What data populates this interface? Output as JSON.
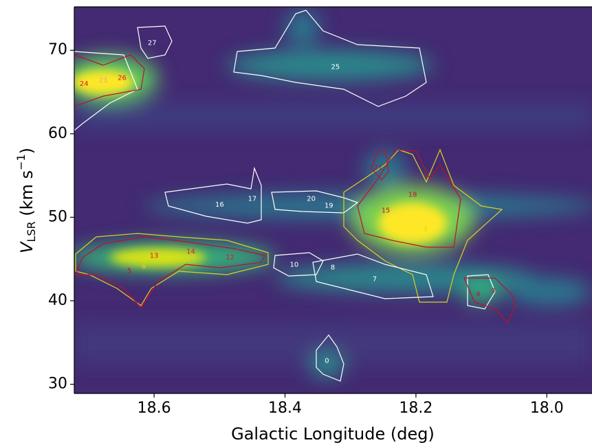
{
  "chart_data": {
    "type": "image",
    "xlabel": "Galactic Longitude (deg)",
    "ylabel": {
      "main": "V",
      "sub": "LSR",
      "unit": " (km s",
      "sup": "−1",
      "close": ")"
    },
    "xlim": [
      18.722,
      17.931
    ],
    "ylim": [
      28.9,
      75.2
    ],
    "xticks": [
      18.6,
      18.4,
      18.2,
      {
        "value": 18,
        "label": "18.0"
      }
    ],
    "yticks": [
      30,
      40,
      50,
      60,
      70
    ],
    "annotations": [
      {
        "text": "27",
        "x": 18.603,
        "y": 70.9,
        "color": "#ffffff"
      },
      {
        "text": "25",
        "x": 18.323,
        "y": 68.0,
        "color": "#ffffff"
      },
      {
        "text": "24",
        "x": 18.707,
        "y": 66.0,
        "color": "#e8102a"
      },
      {
        "text": "23",
        "x": 18.678,
        "y": 66.4,
        "color": "#f0a0a0"
      },
      {
        "text": "26",
        "x": 18.649,
        "y": 66.7,
        "color": "#e8102a"
      },
      {
        "text": "21",
        "x": 18.258,
        "y": 55.9,
        "color": "#c0102a"
      },
      {
        "text": "18",
        "x": 18.205,
        "y": 52.7,
        "color": "#c0102a"
      },
      {
        "text": "17",
        "x": 18.45,
        "y": 52.2,
        "color": "#ffffff"
      },
      {
        "text": "16",
        "x": 18.5,
        "y": 51.5,
        "color": "#ffffff"
      },
      {
        "text": "20",
        "x": 18.36,
        "y": 52.2,
        "color": "#ffffff"
      },
      {
        "text": "19",
        "x": 18.333,
        "y": 51.4,
        "color": "#ffffff"
      },
      {
        "text": "15",
        "x": 18.246,
        "y": 50.8,
        "color": "#c0102a"
      },
      {
        "text": "1",
        "x": 18.185,
        "y": 48.6,
        "color": "#e0d020"
      },
      {
        "text": "13",
        "x": 18.6,
        "y": 45.4,
        "color": "#e8102a"
      },
      {
        "text": "14",
        "x": 18.544,
        "y": 45.9,
        "color": "#e8102a"
      },
      {
        "text": "12",
        "x": 18.484,
        "y": 45.2,
        "color": "#e8102a"
      },
      {
        "text": "6",
        "x": 18.616,
        "y": 44.1,
        "color": "#e0d020"
      },
      {
        "text": "5",
        "x": 18.638,
        "y": 43.6,
        "color": "#c0102a"
      },
      {
        "text": "10",
        "x": 18.386,
        "y": 44.3,
        "color": "#ffffff"
      },
      {
        "text": "8",
        "x": 18.327,
        "y": 44.0,
        "color": "#ffffff"
      },
      {
        "text": "7",
        "x": 18.263,
        "y": 42.6,
        "color": "#ffffff"
      },
      {
        "text": "4",
        "x": 18.105,
        "y": 40.8,
        "color": "#c0102a"
      },
      {
        "text": "3",
        "x": 18.082,
        "y": 41.2,
        "color": "#c0102a"
      },
      {
        "text": "0",
        "x": 18.336,
        "y": 32.8,
        "color": "#ffffff"
      }
    ]
  }
}
